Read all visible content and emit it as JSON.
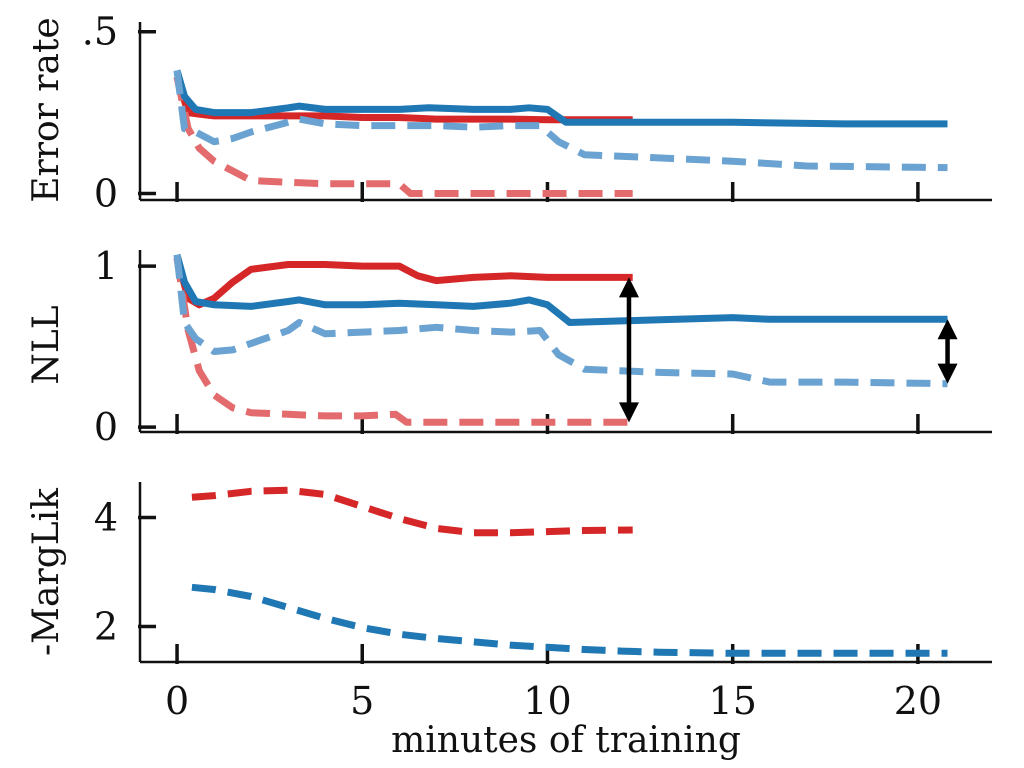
{
  "chart_data": [
    {
      "type": "line",
      "panel": "top",
      "ylabel": "Error rate",
      "xlim": [
        -1,
        22
      ],
      "ylim": [
        -0.02,
        0.53
      ],
      "xticks": [
        0,
        5,
        10,
        15,
        20
      ],
      "xtick_labels": [
        "",
        "",
        "",
        "",
        ""
      ],
      "yticks": [
        0,
        0.5
      ],
      "ytick_labels": [
        "0",
        ".5"
      ],
      "series": [
        {
          "name": "red-test",
          "color": "#d62728",
          "style": "solid",
          "opacity": 1.0,
          "x": [
            0.0,
            0.3,
            0.6,
            1.0,
            2.0,
            3.0,
            4.0,
            5.0,
            6.0,
            7.0,
            8.0,
            9.0,
            10.0,
            11.0,
            12.3
          ],
          "y": [
            0.36,
            0.25,
            0.245,
            0.24,
            0.24,
            0.24,
            0.24,
            0.235,
            0.235,
            0.23,
            0.23,
            0.23,
            0.228,
            0.228,
            0.228
          ]
        },
        {
          "name": "red-train",
          "color": "#e36b6d",
          "style": "dashed",
          "opacity": 1.0,
          "x": [
            0.0,
            0.3,
            0.6,
            1.0,
            1.5,
            2.0,
            3.0,
            4.0,
            5.0,
            6.0,
            6.3,
            7.0,
            8.0,
            10.0,
            12.3
          ],
          "y": [
            0.36,
            0.2,
            0.14,
            0.1,
            0.07,
            0.04,
            0.035,
            0.03,
            0.03,
            0.03,
            0.0,
            0.0,
            0.0,
            0.0,
            0.0
          ]
        },
        {
          "name": "blue-test",
          "color": "#1f77b4",
          "style": "solid",
          "opacity": 1.0,
          "x": [
            0.0,
            0.2,
            0.5,
            1.0,
            2.0,
            3.0,
            3.3,
            4.0,
            5.0,
            6.0,
            6.8,
            8.0,
            9.0,
            9.5,
            10.0,
            10.5,
            12.0,
            15.0,
            18.0,
            20.8
          ],
          "y": [
            0.38,
            0.3,
            0.26,
            0.25,
            0.25,
            0.265,
            0.27,
            0.26,
            0.26,
            0.26,
            0.265,
            0.26,
            0.26,
            0.265,
            0.26,
            0.22,
            0.22,
            0.22,
            0.215,
            0.215
          ]
        },
        {
          "name": "blue-train",
          "color": "#6aa3d1",
          "style": "dashed",
          "opacity": 1.0,
          "x": [
            0.0,
            0.2,
            0.5,
            1.0,
            1.5,
            2.0,
            3.0,
            3.3,
            4.0,
            5.0,
            6.0,
            7.0,
            8.0,
            9.0,
            9.8,
            10.3,
            11.0,
            13.0,
            15.0,
            17.0,
            20.8
          ],
          "y": [
            0.38,
            0.2,
            0.19,
            0.16,
            0.17,
            0.19,
            0.22,
            0.23,
            0.215,
            0.21,
            0.21,
            0.21,
            0.205,
            0.21,
            0.21,
            0.16,
            0.12,
            0.11,
            0.1,
            0.085,
            0.08
          ]
        }
      ]
    },
    {
      "type": "line",
      "panel": "middle",
      "ylabel": "NLL",
      "xlim": [
        -1,
        22
      ],
      "ylim": [
        -0.03,
        1.1
      ],
      "xticks": [
        0,
        5,
        10,
        15,
        20
      ],
      "xtick_labels": [
        "",
        "",
        "",
        "",
        ""
      ],
      "yticks": [
        0,
        1
      ],
      "ytick_labels": [
        "0",
        "1"
      ],
      "series": [
        {
          "name": "red-test",
          "color": "#d62728",
          "style": "solid",
          "opacity": 1.0,
          "x": [
            0.0,
            0.3,
            0.6,
            1.0,
            1.5,
            2.0,
            3.0,
            4.0,
            5.0,
            6.0,
            6.5,
            7.0,
            8.0,
            9.0,
            10.0,
            11.0,
            12.3
          ],
          "y": [
            1.05,
            0.8,
            0.76,
            0.8,
            0.9,
            0.98,
            1.01,
            1.01,
            1.0,
            1.0,
            0.94,
            0.91,
            0.93,
            0.94,
            0.93,
            0.93,
            0.93
          ]
        },
        {
          "name": "red-train",
          "color": "#e36b6d",
          "style": "dashed",
          "opacity": 1.0,
          "x": [
            0.0,
            0.3,
            0.6,
            1.0,
            1.5,
            2.0,
            3.0,
            4.0,
            5.0,
            5.9,
            6.2,
            7.0,
            8.0,
            10.0,
            12.3
          ],
          "y": [
            1.05,
            0.6,
            0.35,
            0.2,
            0.12,
            0.09,
            0.08,
            0.07,
            0.07,
            0.08,
            0.03,
            0.03,
            0.03,
            0.03,
            0.03
          ]
        },
        {
          "name": "blue-test",
          "color": "#1f77b4",
          "style": "solid",
          "opacity": 1.0,
          "x": [
            0.0,
            0.2,
            0.5,
            1.0,
            2.0,
            3.0,
            3.3,
            4.0,
            5.0,
            6.0,
            7.0,
            8.0,
            9.0,
            9.5,
            10.0,
            10.6,
            12.0,
            15.0,
            16.0,
            18.0,
            20.8
          ],
          "y": [
            1.07,
            0.9,
            0.78,
            0.76,
            0.75,
            0.78,
            0.79,
            0.76,
            0.76,
            0.77,
            0.76,
            0.75,
            0.77,
            0.79,
            0.76,
            0.65,
            0.66,
            0.68,
            0.67,
            0.67,
            0.67
          ]
        },
        {
          "name": "blue-train",
          "color": "#6aa3d1",
          "style": "dashed",
          "opacity": 1.0,
          "x": [
            0.0,
            0.2,
            0.5,
            1.0,
            1.5,
            2.0,
            3.0,
            3.3,
            4.0,
            5.0,
            6.0,
            7.0,
            8.0,
            9.0,
            9.8,
            10.3,
            11.0,
            13.0,
            15.0,
            16.0,
            18.0,
            20.8
          ],
          "y": [
            1.07,
            0.65,
            0.55,
            0.47,
            0.48,
            0.52,
            0.6,
            0.65,
            0.58,
            0.59,
            0.6,
            0.62,
            0.6,
            0.59,
            0.6,
            0.45,
            0.36,
            0.34,
            0.33,
            0.28,
            0.28,
            0.27
          ]
        }
      ],
      "annotations": [
        {
          "type": "double-arrow",
          "x": 12.2,
          "y_from": 0.93,
          "y_to": 0.03
        },
        {
          "type": "double-arrow",
          "x": 20.8,
          "y_from": 0.67,
          "y_to": 0.27
        }
      ]
    },
    {
      "type": "line",
      "panel": "bottom",
      "ylabel": "-MargLik",
      "xlabel": "minutes of training",
      "xlim": [
        -1,
        22
      ],
      "ylim": [
        1.35,
        4.65
      ],
      "xticks": [
        0,
        5,
        10,
        15,
        20
      ],
      "xtick_labels": [
        "0",
        "5",
        "10",
        "15",
        "20"
      ],
      "yticks": [
        2,
        4
      ],
      "ytick_labels": [
        "2",
        "4"
      ],
      "series": [
        {
          "name": "red-marglik",
          "color": "#d62728",
          "style": "dashed",
          "opacity": 1.0,
          "x": [
            0.4,
            1.0,
            2.0,
            3.0,
            4.0,
            5.0,
            6.0,
            7.0,
            8.0,
            9.0,
            10.0,
            11.0,
            12.3
          ],
          "y": [
            4.37,
            4.4,
            4.48,
            4.5,
            4.42,
            4.2,
            3.98,
            3.8,
            3.72,
            3.72,
            3.74,
            3.76,
            3.77
          ]
        },
        {
          "name": "blue-marglik",
          "color": "#1f77b4",
          "style": "dashed",
          "opacity": 1.0,
          "x": [
            0.4,
            1.0,
            2.0,
            3.0,
            4.0,
            5.0,
            6.0,
            7.0,
            8.0,
            9.0,
            10.0,
            11.0,
            12.0,
            13.0,
            15.0,
            17.0,
            20.8
          ],
          "y": [
            2.72,
            2.68,
            2.55,
            2.35,
            2.15,
            1.98,
            1.86,
            1.78,
            1.72,
            1.66,
            1.62,
            1.58,
            1.55,
            1.53,
            1.51,
            1.51,
            1.51
          ]
        }
      ]
    }
  ]
}
